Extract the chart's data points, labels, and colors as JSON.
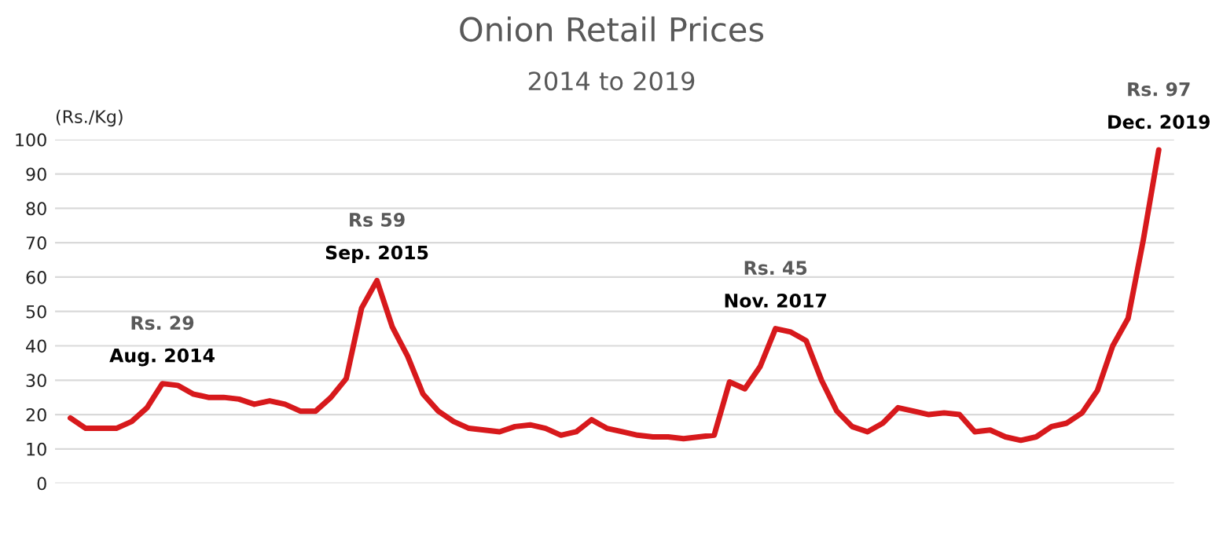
{
  "chart_data": {
    "type": "line",
    "title": "Onion Retail Prices",
    "subtitle": "2014 to 2019",
    "ylabel": "(Rs./Kg)",
    "categories": [
      null,
      null,
      null,
      null,
      null,
      null,
      null,
      null,
      null,
      null,
      null,
      null,
      null,
      null,
      null,
      null,
      null,
      null,
      null,
      null,
      null,
      null,
      null,
      null,
      null,
      null,
      null,
      null,
      null,
      null,
      null,
      null,
      null,
      null,
      null,
      null,
      null,
      null,
      null,
      null,
      null,
      null,
      null,
      null,
      null,
      null,
      null,
      null,
      null,
      null,
      null,
      null,
      null,
      null,
      null,
      null,
      null,
      null,
      null,
      null,
      null,
      null,
      null,
      null,
      null,
      null,
      null,
      null,
      null,
      null,
      null,
      null
    ],
    "series": [
      {
        "color": "#d7191c",
        "values": [
          19,
          16,
          16,
          16,
          18,
          22,
          29,
          28.5,
          26,
          25,
          25,
          24.5,
          23,
          24,
          23,
          21,
          21,
          25,
          30.5,
          51,
          59,
          45.5,
          37,
          26,
          21,
          18,
          16,
          15.5,
          15,
          16.5,
          17,
          16,
          14,
          15,
          18.5,
          16,
          15,
          14,
          13.5,
          13.5,
          13,
          13.5,
          14,
          29.5,
          27.5,
          34,
          45,
          44,
          41.5,
          30,
          21,
          16.5,
          15,
          17.5,
          22,
          21,
          20,
          20.5,
          20,
          15,
          15.5,
          13.5,
          12.5,
          13.5,
          16.5,
          17.5,
          20.5,
          27,
          40,
          48,
          71,
          97
        ]
      }
    ],
    "ylim": [
      0,
      100
    ],
    "yticks": [
      0,
      10,
      20,
      30,
      40,
      50,
      60,
      70,
      80,
      90,
      100
    ],
    "grid": "y",
    "legend": false,
    "marker": "none",
    "line_style": "solid",
    "annotations": [
      {
        "text": "Rs. 29\nAug. 2014",
        "y": 29
      },
      {
        "text": "Rs 59\nSep. 2015",
        "y": 59
      },
      {
        "text": "Rs. 45\nNov. 2017",
        "y": 45
      },
      {
        "text": "Rs. 97\nDec. 2019",
        "y": 97
      }
    ]
  }
}
